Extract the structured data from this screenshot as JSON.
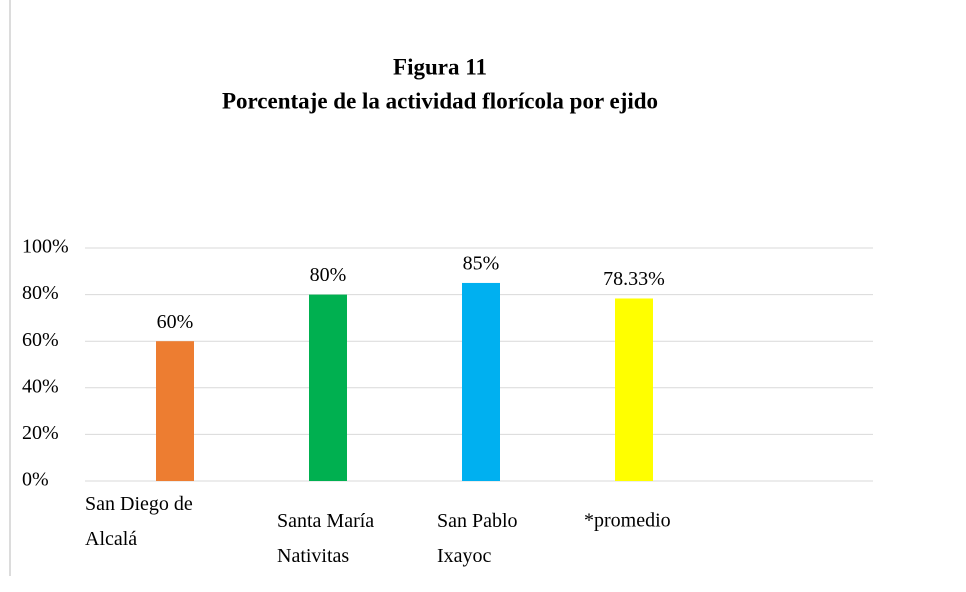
{
  "chart_data": {
    "type": "bar",
    "title": "Figura 11",
    "subtitle": "Porcentaje de la actividad florícola por ejido",
    "categories": [
      "San Diego de\nAlcalá",
      "Santa María\nNativitas",
      "San Pablo\nIxayoc",
      "*promedio"
    ],
    "values": [
      60,
      80,
      85,
      78.33
    ],
    "value_labels": [
      "60%",
      "80%",
      "85%",
      "78.33%"
    ],
    "colors": [
      "#ED7D31",
      "#00B050",
      "#00B0F0",
      "#FFFF00"
    ],
    "ylim": [
      0,
      100
    ],
    "yticks": [
      {
        "value": 0,
        "label": "0%"
      },
      {
        "value": 20,
        "label": "20%"
      },
      {
        "value": 40,
        "label": "40%"
      },
      {
        "value": 60,
        "label": "60%"
      },
      {
        "value": 80,
        "label": "80%"
      },
      {
        "value": 100,
        "label": "100%"
      }
    ],
    "grid": true
  }
}
